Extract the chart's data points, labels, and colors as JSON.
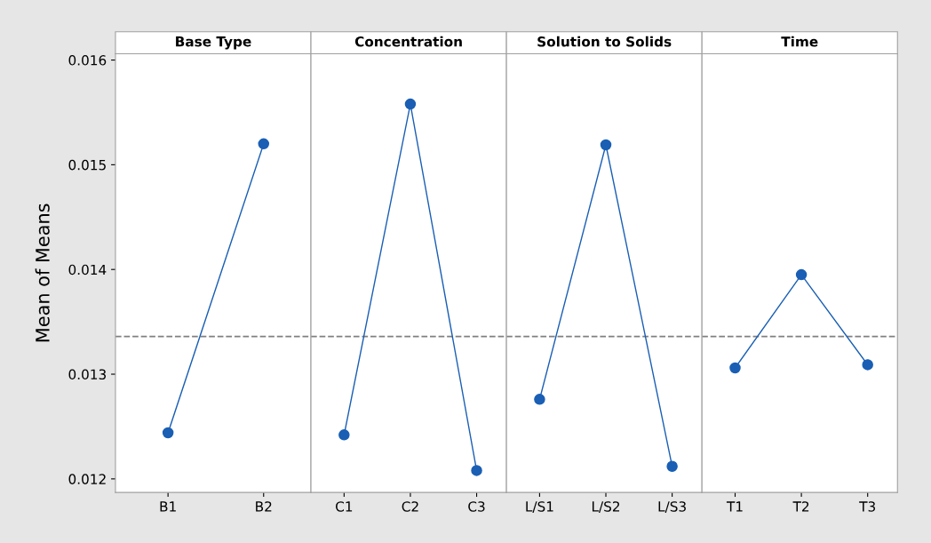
{
  "chart_data": [
    {
      "type": "line",
      "title": "Base Type",
      "ylabel": "Mean of Means",
      "categories": [
        "B1",
        "B2"
      ],
      "series": [
        {
          "color": "#1a5fb4",
          "values": [
            0.01244,
            0.0152
          ]
        }
      ],
      "ylim": [
        0.01187,
        0.01606
      ],
      "yticks": [
        0.012,
        0.013,
        0.014,
        0.015,
        0.016
      ],
      "marker": "circle",
      "line_style": "solid",
      "ref_lines": [
        {
          "axis": "y",
          "value": 0.01336,
          "color": "#808080",
          "line_style": "dashed"
        }
      ]
    },
    {
      "type": "line",
      "title": "Concentration",
      "categories": [
        "C1",
        "C2",
        "C3"
      ],
      "series": [
        {
          "color": "#1a5fb4",
          "values": [
            0.01242,
            0.01558,
            0.01208
          ]
        }
      ],
      "ylim": [
        0.01187,
        0.01606
      ],
      "yticks": [
        0.012,
        0.013,
        0.014,
        0.015,
        0.016
      ],
      "tick_labels": "x",
      "marker": "circle",
      "line_style": "solid",
      "ref_lines": [
        {
          "axis": "y",
          "value": 0.01336,
          "color": "#808080",
          "line_style": "dashed"
        }
      ]
    },
    {
      "type": "line",
      "title": "Solution to Solids",
      "categories": [
        "L/S1",
        "L/S2",
        "L/S3"
      ],
      "series": [
        {
          "color": "#1a5fb4",
          "values": [
            0.01276,
            0.01519,
            0.01212
          ]
        }
      ],
      "ylim": [
        0.01187,
        0.01606
      ],
      "yticks": [
        0.012,
        0.013,
        0.014,
        0.015,
        0.016
      ],
      "tick_labels": "x",
      "marker": "circle",
      "line_style": "solid",
      "ref_lines": [
        {
          "axis": "y",
          "value": 0.01336,
          "color": "#808080",
          "line_style": "dashed"
        }
      ]
    },
    {
      "type": "line",
      "title": "Time",
      "categories": [
        "T1",
        "T2",
        "T3"
      ],
      "series": [
        {
          "color": "#1a5fb4",
          "values": [
            0.01306,
            0.01395,
            0.01309
          ]
        }
      ],
      "ylim": [
        0.01187,
        0.01606
      ],
      "yticks": [
        0.012,
        0.013,
        0.014,
        0.015,
        0.016
      ],
      "tick_labels": "x",
      "marker": "circle",
      "line_style": "solid",
      "ref_lines": [
        {
          "axis": "y",
          "value": 0.01336,
          "color": "#808080",
          "line_style": "dashed"
        }
      ]
    }
  ]
}
